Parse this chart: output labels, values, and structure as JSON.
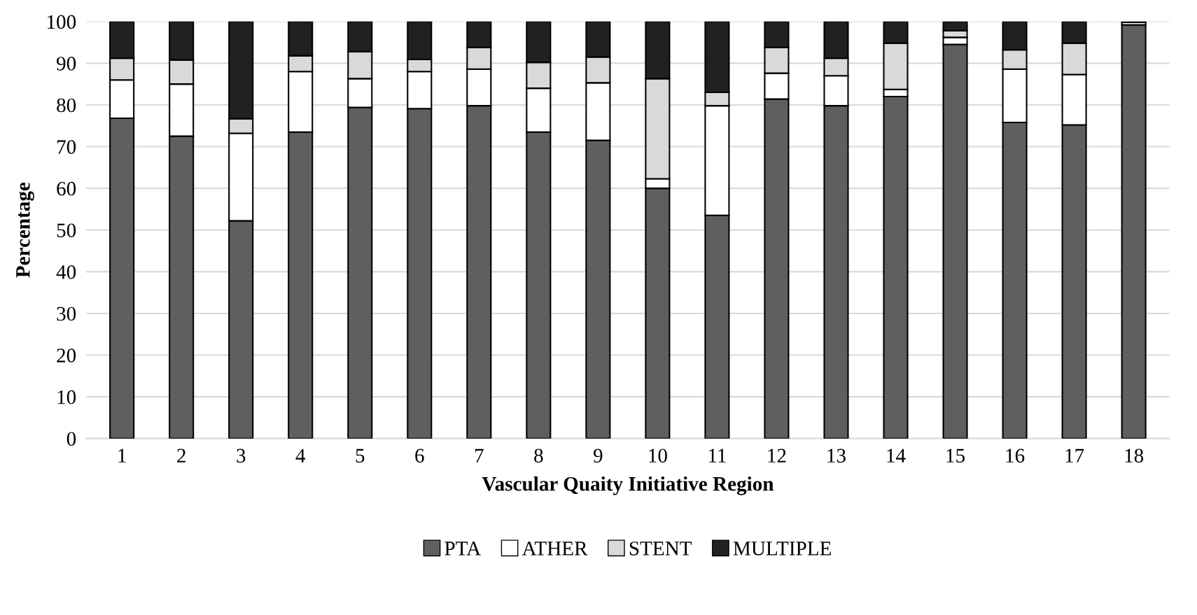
{
  "chart_data": {
    "type": "bar",
    "stacked": true,
    "xlabel": "Vascular Quaity Initiative Region",
    "ylabel": "Percentage",
    "categories": [
      "1",
      "2",
      "3",
      "4",
      "5",
      "6",
      "7",
      "8",
      "9",
      "10",
      "11",
      "12",
      "13",
      "14",
      "15",
      "16",
      "17",
      "18"
    ],
    "series": [
      {
        "name": "PTA",
        "color": "#5f5f5f",
        "values": [
          76.8,
          72.5,
          52.2,
          73.5,
          79.4,
          79.1,
          79.8,
          73.5,
          71.5,
          60,
          53.5,
          81.4,
          79.8,
          82,
          94.5,
          75.8,
          75.2,
          99.2
        ]
      },
      {
        "name": "ATHER",
        "color": "#ffffff",
        "values": [
          9.2,
          12.5,
          21,
          14.5,
          6.9,
          8.9,
          8.8,
          10.5,
          13.8,
          2.3,
          26.3,
          6.2,
          7.2,
          1.7,
          1.7,
          12.8,
          12.1,
          0.6
        ]
      },
      {
        "name": "STENT",
        "color": "#d9d9d9",
        "values": [
          5.2,
          5.8,
          3.5,
          3.8,
          6.5,
          2.9,
          5.2,
          6.2,
          6.2,
          24,
          3.2,
          6.2,
          4.2,
          11.1,
          1.6,
          4.6,
          7.5,
          0.2
        ]
      },
      {
        "name": "MULTIPLE",
        "color": "#212121",
        "values": [
          8.8,
          9.2,
          23.3,
          8.2,
          7.2,
          9.1,
          6.2,
          9.8,
          8.5,
          13.7,
          17,
          6.2,
          8.8,
          5.2,
          2.2,
          6.8,
          5.2,
          null
        ]
      }
    ],
    "ylim": [
      0,
      100
    ],
    "yticks": [
      0,
      10,
      20,
      30,
      40,
      50,
      60,
      70,
      80,
      90,
      100
    ],
    "grid": "y",
    "legend": "bottom"
  }
}
